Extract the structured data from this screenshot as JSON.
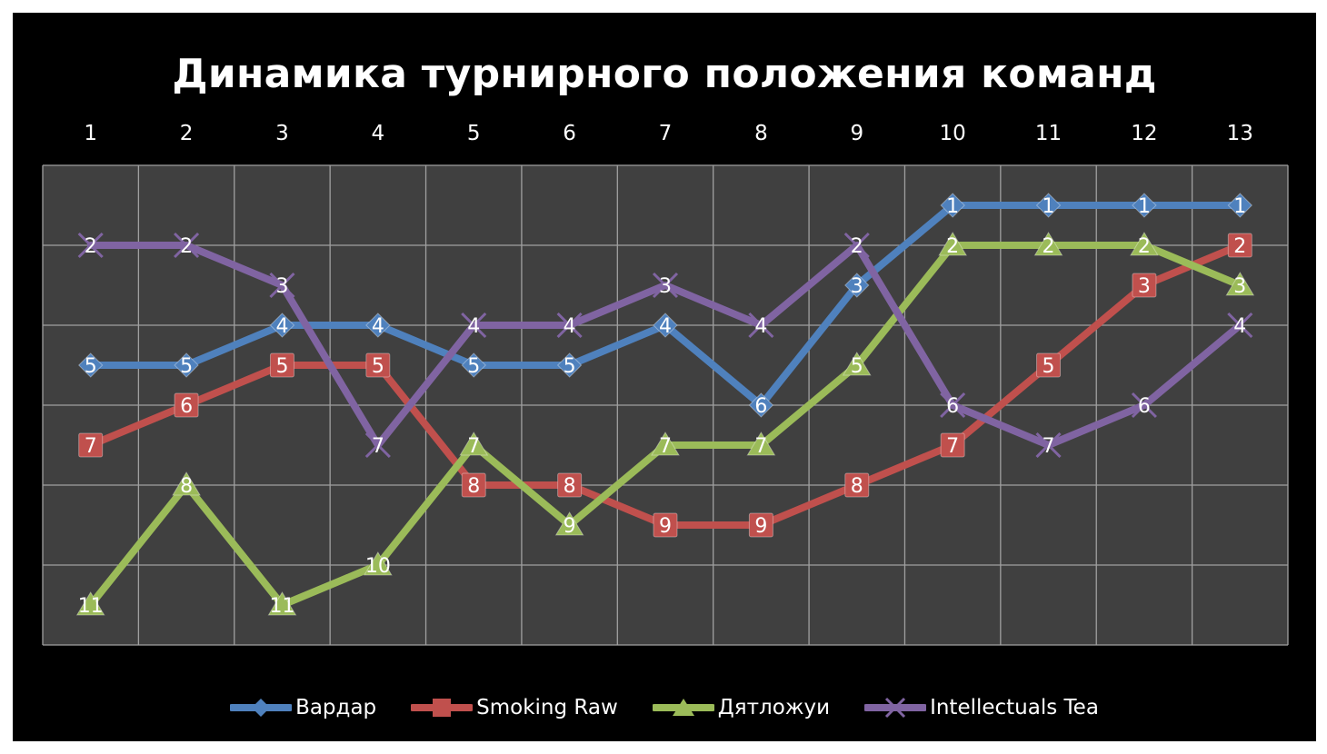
{
  "chart_data": {
    "type": "line",
    "title": "Динамика турнирного положения команд",
    "xlabel": "",
    "ylabel": "",
    "x": [
      "1",
      "2",
      "3",
      "4",
      "5",
      "6",
      "7",
      "8",
      "9",
      "10",
      "11",
      "12",
      "13"
    ],
    "x_axis_position": "top",
    "y_reversed": true,
    "ylim": [
      0,
      12
    ],
    "show_y_tick_labels": false,
    "grid": true,
    "legend_position": "bottom",
    "background": "#000000",
    "plot_background": "#404040",
    "grid_color": "#a0a0a0",
    "data_labels": true,
    "series": [
      {
        "name": "Вардар",
        "color": "#4f81bd",
        "marker": "diamond",
        "values": [
          5,
          5,
          4,
          4,
          5,
          5,
          4,
          6,
          3,
          1,
          1,
          1,
          1
        ]
      },
      {
        "name": "Smoking Raw",
        "color": "#c0504d",
        "marker": "square",
        "values": [
          7,
          6,
          5,
          5,
          8,
          8,
          9,
          9,
          8,
          7,
          5,
          3,
          2
        ]
      },
      {
        "name": "Дятложуи",
        "color": "#9bbb59",
        "marker": "triangle",
        "values": [
          11,
          8,
          11,
          10,
          7,
          9,
          7,
          7,
          5,
          2,
          2,
          2,
          3
        ]
      },
      {
        "name": "Intellectuals Tea",
        "color": "#8064a2",
        "marker": "x",
        "values": [
          2,
          2,
          3,
          7,
          4,
          4,
          3,
          4,
          2,
          6,
          7,
          6,
          4
        ]
      }
    ]
  }
}
